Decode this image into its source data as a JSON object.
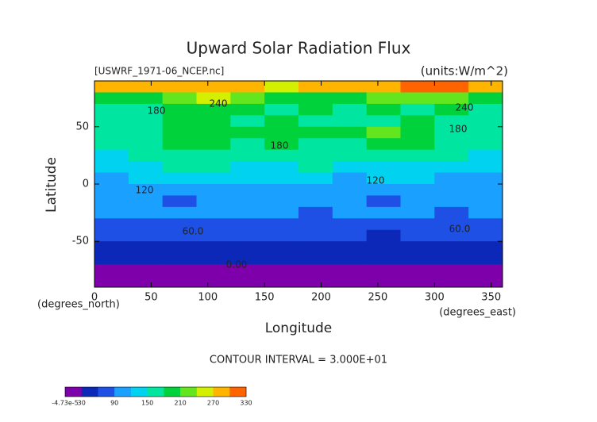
{
  "chart_data": {
    "type": "contour",
    "title": "Upward Solar Radiation Flux",
    "subtitle": "[USWRF_1971-06_NCEP.nc]",
    "units": "(units:W/m^2)",
    "xlabel": "Longitude",
    "ylabel": "Latitude",
    "xunit": "(degrees_east)",
    "yunit": "(degrees_north)",
    "footer": "CONTOUR INTERVAL = 3.000E+01",
    "xlim": [
      0,
      360
    ],
    "ylim": [
      -90,
      90
    ],
    "xticks": [
      0,
      50,
      100,
      150,
      200,
      250,
      300,
      350
    ],
    "yticks": [
      -50,
      0,
      50
    ],
    "lon": [
      15,
      45,
      75,
      105,
      135,
      165,
      195,
      225,
      255,
      285,
      315,
      345
    ],
    "lat": [
      85,
      75,
      65,
      55,
      45,
      35,
      25,
      15,
      5,
      -5,
      -15,
      -25,
      -35,
      -45,
      -55,
      -65,
      -75,
      -85
    ],
    "z": [
      [
        280,
        285,
        270,
        275,
        270,
        265,
        270,
        280,
        290,
        305,
        310,
        295
      ],
      [
        200,
        190,
        220,
        240,
        210,
        200,
        200,
        190,
        210,
        230,
        220,
        200
      ],
      [
        175,
        165,
        185,
        200,
        180,
        175,
        185,
        170,
        180,
        175,
        185,
        170
      ],
      [
        160,
        170,
        180,
        190,
        170,
        180,
        175,
        160,
        170,
        180,
        170,
        165
      ],
      [
        170,
        175,
        190,
        185,
        180,
        200,
        195,
        185,
        210,
        190,
        175,
        170
      ],
      [
        160,
        170,
        195,
        190,
        175,
        185,
        175,
        165,
        190,
        185,
        170,
        160
      ],
      [
        140,
        150,
        170,
        175,
        160,
        165,
        160,
        150,
        155,
        160,
        150,
        140
      ],
      [
        130,
        140,
        150,
        155,
        140,
        145,
        150,
        125,
        145,
        140,
        135,
        130
      ],
      [
        115,
        120,
        125,
        130,
        120,
        125,
        120,
        115,
        125,
        120,
        115,
        110
      ],
      [
        105,
        110,
        115,
        110,
        105,
        110,
        105,
        100,
        110,
        105,
        110,
        105
      ],
      [
        95,
        100,
        80,
        95,
        90,
        100,
        95,
        90,
        85,
        95,
        100,
        95
      ],
      [
        90,
        95,
        95,
        90,
        95,
        90,
        85,
        95,
        90,
        95,
        85,
        90
      ],
      [
        75,
        80,
        85,
        80,
        85,
        80,
        75,
        80,
        85,
        80,
        75,
        80
      ],
      [
        65,
        60,
        65,
        60,
        65,
        60,
        65,
        60,
        55,
        60,
        65,
        60
      ],
      [
        45,
        40,
        45,
        40,
        45,
        40,
        45,
        40,
        45,
        40,
        45,
        40
      ],
      [
        35,
        35,
        35,
        35,
        35,
        35,
        35,
        35,
        35,
        40,
        35,
        35
      ],
      [
        10,
        10,
        10,
        10,
        10,
        10,
        10,
        10,
        10,
        10,
        10,
        10
      ],
      [
        5,
        5,
        5,
        5,
        5,
        5,
        5,
        5,
        5,
        5,
        5,
        5
      ]
    ],
    "levels": [
      0,
      30,
      60,
      90,
      120,
      150,
      180,
      210,
      240,
      270,
      300,
      330
    ],
    "colors": [
      "#7d00aa",
      "#0c28b8",
      "#1e50e6",
      "#1aa0ff",
      "#00d2f0",
      "#00e6a0",
      "#00d23c",
      "#64e61e",
      "#d2f000",
      "#ffb400",
      "#ff6400",
      "#ff2800"
    ],
    "contour_labels": [
      "240",
      "240",
      "180",
      "180",
      "180",
      "120",
      "120",
      "60.0",
      "60.0",
      "0.00"
    ],
    "colorbar_lim": [
      0,
      330
    ],
    "colorbar_ticks": [
      {
        "value": -4.73e-05,
        "label": "-4.73e-5"
      },
      30,
      90,
      150,
      210,
      270,
      330
    ]
  }
}
